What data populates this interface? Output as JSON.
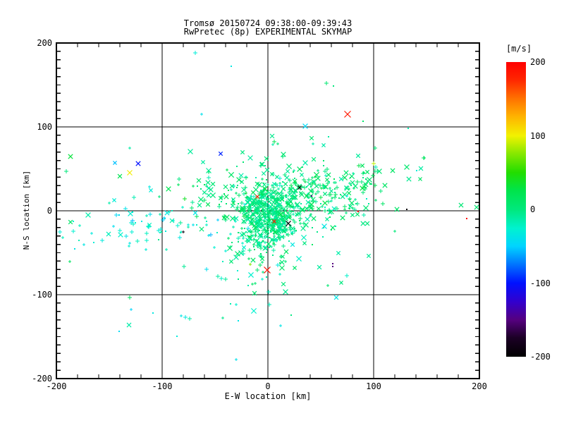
{
  "title": {
    "line1": "Tromsø 20150724 09:38:00-09:39:43",
    "line2": "RwPretec (8p) EXPERIMENTAL SKYMAP"
  },
  "chart_data": {
    "type": "scatter",
    "title": "Tromsø 20150724 09:38:00-09:39:43",
    "subtitle": "RwPretec (8p) EXPERIMENTAL SKYMAP",
    "xlabel": "E-W location [km]",
    "ylabel": "N-S location [km]",
    "xlim": [
      -200,
      200
    ],
    "ylim": [
      -200,
      200
    ],
    "x_ticks": [
      -200,
      -100,
      0,
      100,
      200
    ],
    "y_ticks": [
      -200,
      -100,
      0,
      100,
      200
    ],
    "x_minor_step": 20,
    "y_minor_step": 10,
    "grid": true,
    "grid_values": [
      -100,
      0,
      100
    ],
    "frame_color": "#000000",
    "colorbar": {
      "label": "[m/s]",
      "min": -200,
      "max": 200,
      "ticks": [
        200,
        100,
        0,
        -100,
        -200
      ],
      "gradient_stops": [
        [
          1.0,
          "#ff0000"
        ],
        [
          0.94,
          "#ff2600"
        ],
        [
          0.875,
          "#ff7300"
        ],
        [
          0.815,
          "#ffb300"
        ],
        [
          0.75,
          "#f2f200"
        ],
        [
          0.69,
          "#88e800"
        ],
        [
          0.625,
          "#22dd00"
        ],
        [
          0.565,
          "#00e44a"
        ],
        [
          0.5,
          "#00e87c"
        ],
        [
          0.435,
          "#00f2d0"
        ],
        [
          0.375,
          "#00d4ff"
        ],
        [
          0.315,
          "#0077ff"
        ],
        [
          0.25,
          "#0011ff"
        ],
        [
          0.185,
          "#3300cc"
        ],
        [
          0.125,
          "#55007f"
        ],
        [
          0.065,
          "#1c0026"
        ],
        [
          0.0,
          "#000000"
        ]
      ]
    },
    "velocity_units": "m/s",
    "points_explicit": [
      [
        -69,
        188,
        -30,
        "plus"
      ],
      [
        -35,
        172,
        -35,
        "dot"
      ],
      [
        55,
        152,
        5,
        "plus"
      ],
      [
        62,
        149,
        0,
        "dot"
      ],
      [
        -63,
        115,
        -40,
        "plus"
      ],
      [
        75,
        115,
        185,
        "X"
      ],
      [
        90,
        107,
        10,
        "dot"
      ],
      [
        35,
        101,
        -45,
        "x"
      ],
      [
        148,
        63,
        12,
        "plus"
      ],
      [
        -187,
        65,
        30,
        "x"
      ],
      [
        -145,
        57,
        -55,
        "x"
      ],
      [
        -123,
        56,
        -100,
        "x"
      ],
      [
        -131,
        45,
        102,
        "x"
      ],
      [
        -45,
        68,
        -95,
        "x"
      ],
      [
        -140,
        41,
        22,
        "x"
      ],
      [
        -111,
        24,
        -30,
        "x"
      ],
      [
        30,
        28,
        -195,
        "x"
      ],
      [
        -10,
        17,
        182,
        "x"
      ],
      [
        41,
        18,
        -148,
        "dot"
      ],
      [
        19,
        -15,
        -195,
        "x"
      ],
      [
        6,
        -13,
        183,
        "x"
      ],
      [
        -1,
        -71,
        188,
        "X"
      ],
      [
        61,
        -63,
        -150,
        "dot"
      ],
      [
        61,
        -66,
        -150,
        "dot"
      ],
      [
        -17,
        -64,
        75,
        "plus"
      ],
      [
        100,
        56,
        88,
        "plus"
      ],
      [
        85,
        -1,
        195,
        "dot"
      ],
      [
        131,
        2,
        -192,
        "dot"
      ],
      [
        188,
        -9,
        198,
        "dot"
      ],
      [
        -80,
        -25,
        -190,
        "plus"
      ],
      [
        -30,
        -177,
        -40,
        "plus"
      ],
      [
        -141,
        -144,
        -45,
        "dot"
      ],
      [
        -78,
        -127,
        -35,
        "plus"
      ],
      [
        147,
        63,
        15,
        "plus"
      ]
    ],
    "clusters": [
      {
        "name": "dense-core",
        "n": 430,
        "cx": 2,
        "cy": -8,
        "sx": 13,
        "sy": 19,
        "v_mean": -2,
        "v_sd": 9,
        "seed": 101,
        "weights": {
          "plus": 0.5,
          "x": 0.3,
          "dot": 0.2
        }
      },
      {
        "name": "inner-cloud",
        "n": 270,
        "cx": 15,
        "cy": 20,
        "sx": 40,
        "sy": 20,
        "v_mean": 4,
        "v_sd": 11,
        "seed": 202,
        "weights": {
          "plus": 0.4,
          "x": 0.4,
          "dot": 0.2
        }
      },
      {
        "name": "east-wing",
        "n": 80,
        "cx": 70,
        "cy": 22,
        "sx": 32,
        "sy": 17,
        "v_mean": 6,
        "v_sd": 9,
        "seed": 303,
        "weights": {
          "plus": 0.45,
          "x": 0.35,
          "dot": 0.2
        }
      },
      {
        "name": "west-band",
        "n": 75,
        "cx": -115,
        "cy": -18,
        "sx": 40,
        "sy": 14,
        "v_mean": -28,
        "v_sd": 10,
        "seed": 404,
        "weights": {
          "plus": 0.6,
          "x": 0.15,
          "dot": 0.25
        }
      },
      {
        "name": "outer-halo",
        "n": 95,
        "cx": 5,
        "cy": 5,
        "sx": 80,
        "sy": 50,
        "v_mean": -6,
        "v_sd": 18,
        "seed": 505,
        "weights": {
          "plus": 0.4,
          "x": 0.35,
          "dot": 0.25
        }
      },
      {
        "name": "south-plume",
        "n": 55,
        "cx": -5,
        "cy": -62,
        "sx": 22,
        "sy": 20,
        "v_mean": -10,
        "v_sd": 14,
        "seed": 606,
        "weights": {
          "plus": 0.45,
          "x": 0.35,
          "dot": 0.2
        }
      },
      {
        "name": "south-sparse",
        "n": 14,
        "cx": -35,
        "cy": -125,
        "sx": 55,
        "sy": 18,
        "v_mean": -22,
        "v_sd": 12,
        "seed": 707,
        "weights": {
          "plus": 0.6,
          "x": 0.2,
          "dot": 0.2
        }
      }
    ]
  }
}
